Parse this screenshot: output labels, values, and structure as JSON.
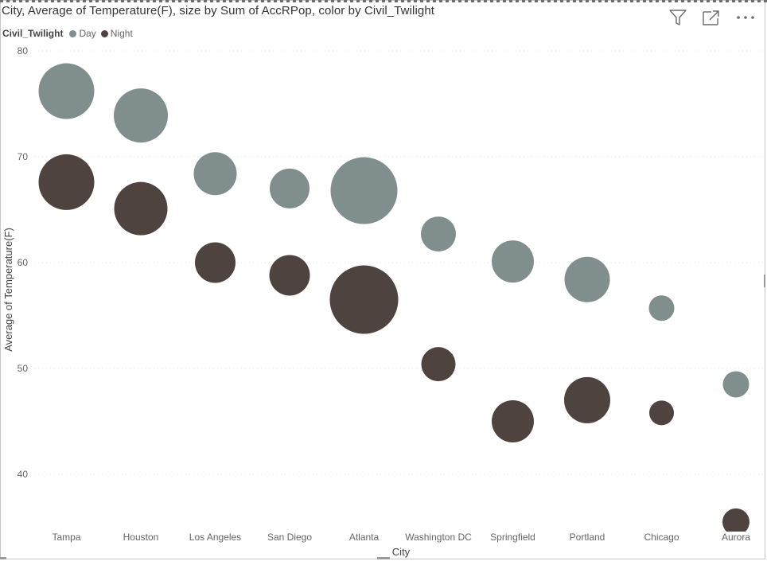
{
  "visual": {
    "title": "City, Average of Temperature(F), size by Sum of AccRPop, color by Civil_Twilight",
    "legend_title": "Civil_Twilight",
    "legend_items": [
      {
        "label": "Day",
        "color": "#808e8d"
      },
      {
        "label": "Night",
        "color": "#4f4340"
      }
    ],
    "header_icons": [
      "filter-icon",
      "focus-mode-icon",
      "more-options-icon"
    ]
  },
  "chart_data": {
    "type": "scatter",
    "title": "City, Average of Temperature(F), size by Sum of AccRPop, color by Civil_Twilight",
    "xlabel": "City",
    "ylabel": "Average of Temperature(F)",
    "categories": [
      "Tampa",
      "Houston",
      "Los Angeles",
      "San Diego",
      "Atlanta",
      "Washington DC",
      "Springfield",
      "Portland",
      "Chicago",
      "Aurora"
    ],
    "ylim": [
      35,
      80
    ],
    "yticks": [
      40,
      50,
      60,
      70,
      80
    ],
    "grid": true,
    "legend_position": "top-left",
    "size_field": "Sum of AccRPop",
    "series": [
      {
        "name": "Day",
        "color": "#808e8d",
        "values": [
          76.2,
          73.9,
          68.4,
          67.0,
          66.8,
          62.7,
          60.1,
          58.4,
          55.7,
          48.5
        ],
        "sizes": [
          70,
          68,
          54,
          50,
          84,
          44,
          53,
          57,
          32,
          33
        ]
      },
      {
        "name": "Night",
        "color": "#4f4340",
        "values": [
          67.6,
          65.1,
          60.0,
          58.8,
          56.5,
          50.4,
          45.0,
          47.0,
          45.8,
          35.5
        ],
        "sizes": [
          70,
          67,
          51,
          51,
          86,
          43,
          53,
          58,
          31,
          34
        ]
      }
    ]
  }
}
